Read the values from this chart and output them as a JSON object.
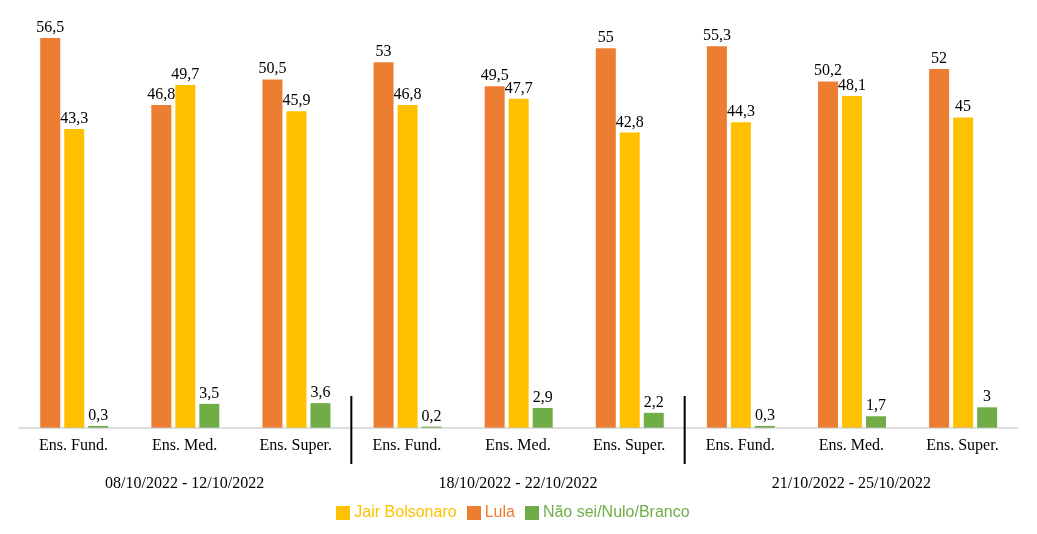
{
  "chart_data": {
    "type": "bar",
    "categories": [
      "Ens. Fund.",
      "Ens. Med.",
      "Ens. Super.",
      "Ens. Fund.",
      "Ens. Med.",
      "Ens. Super.",
      "Ens. Fund.",
      "Ens. Med.",
      "Ens. Super."
    ],
    "series": [
      {
        "name": "Lula",
        "color": "#ed7d31",
        "values": [
          56.5,
          46.8,
          50.5,
          53,
          49.5,
          55,
          55.3,
          50.2,
          52
        ],
        "value_labels": [
          "56,5",
          "46,8",
          "50,5",
          "53",
          "49,5",
          "55",
          "55,3",
          "50,2",
          "52"
        ]
      },
      {
        "name": "Jair Bolsonaro",
        "color": "#ffc000",
        "values": [
          43.3,
          49.7,
          45.9,
          46.8,
          47.7,
          42.8,
          44.3,
          48.1,
          45
        ],
        "value_labels": [
          "43,3",
          "49,7",
          "45,9",
          "46,8",
          "47,7",
          "42,8",
          "44,3",
          "48,1",
          "45"
        ]
      },
      {
        "name": "Não sei/Nulo/Branco",
        "color": "#70ad47",
        "values": [
          0.3,
          3.5,
          3.6,
          0.2,
          2.9,
          2.2,
          0.3,
          1.7,
          3
        ],
        "value_labels": [
          "0,3",
          "3,5",
          "3,6",
          "0,2",
          "2,9",
          "2,2",
          "0,3",
          "1,7",
          "3"
        ]
      }
    ],
    "annotations": [
      "08/10/2022 - 12/10/2022",
      "18/10/2022 - 22/10/2022",
      "21/10/2022 - 25/10/2022"
    ],
    "legend": "bottom",
    "grid": false
  }
}
